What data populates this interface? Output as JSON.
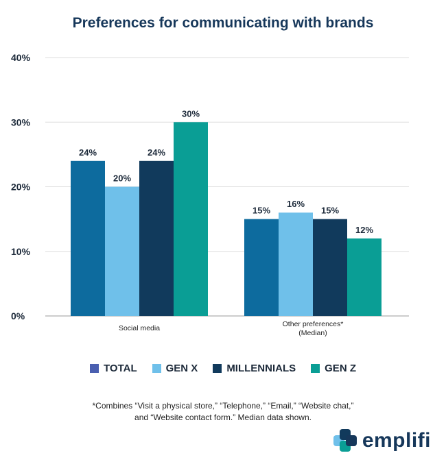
{
  "title": "Preferences for communicating with brands",
  "colors": {
    "TOTAL": "#0d6b9e",
    "GEN X": "#6fc0ea",
    "MILLENNIALS": "#113a5c",
    "GEN Z": "#0a9e95",
    "legend_total": "#4a5fb0",
    "gridline": "#dddddd",
    "axis": "#999999"
  },
  "chart_data": {
    "type": "bar",
    "categories": [
      "Social media",
      "Other preferences*\n(Median)"
    ],
    "series": [
      {
        "name": "TOTAL",
        "values": [
          24,
          15
        ]
      },
      {
        "name": "GEN X",
        "values": [
          20,
          16
        ]
      },
      {
        "name": "MILLENNIALS",
        "values": [
          24,
          15
        ]
      },
      {
        "name": "GEN Z",
        "values": [
          30,
          12
        ]
      }
    ],
    "data_labels": [
      [
        "24%",
        "20%",
        "24%",
        "30%"
      ],
      [
        "15%",
        "16%",
        "15%",
        "12%"
      ]
    ],
    "yticks": [
      "0%",
      "10%",
      "20%",
      "30%",
      "40%"
    ],
    "ylim": [
      0,
      40
    ],
    "grid": true,
    "legend": "bottom-center"
  },
  "legend_items": [
    {
      "label": "TOTAL",
      "color": "#4a5fb0"
    },
    {
      "label": "GEN X",
      "color": "#6fc0ea"
    },
    {
      "label": "MILLENNIALS",
      "color": "#113a5c"
    },
    {
      "label": "GEN Z",
      "color": "#0a9e95"
    }
  ],
  "footnote": {
    "line1": "*Combines “Visit a physical store,” “Telephone,” “Email,” “Website chat,”",
    "line2": "and “Website contact form.” Median data shown."
  },
  "brand": {
    "name": "emplifi",
    "logo_icon": "emplifi-logo-icon"
  }
}
